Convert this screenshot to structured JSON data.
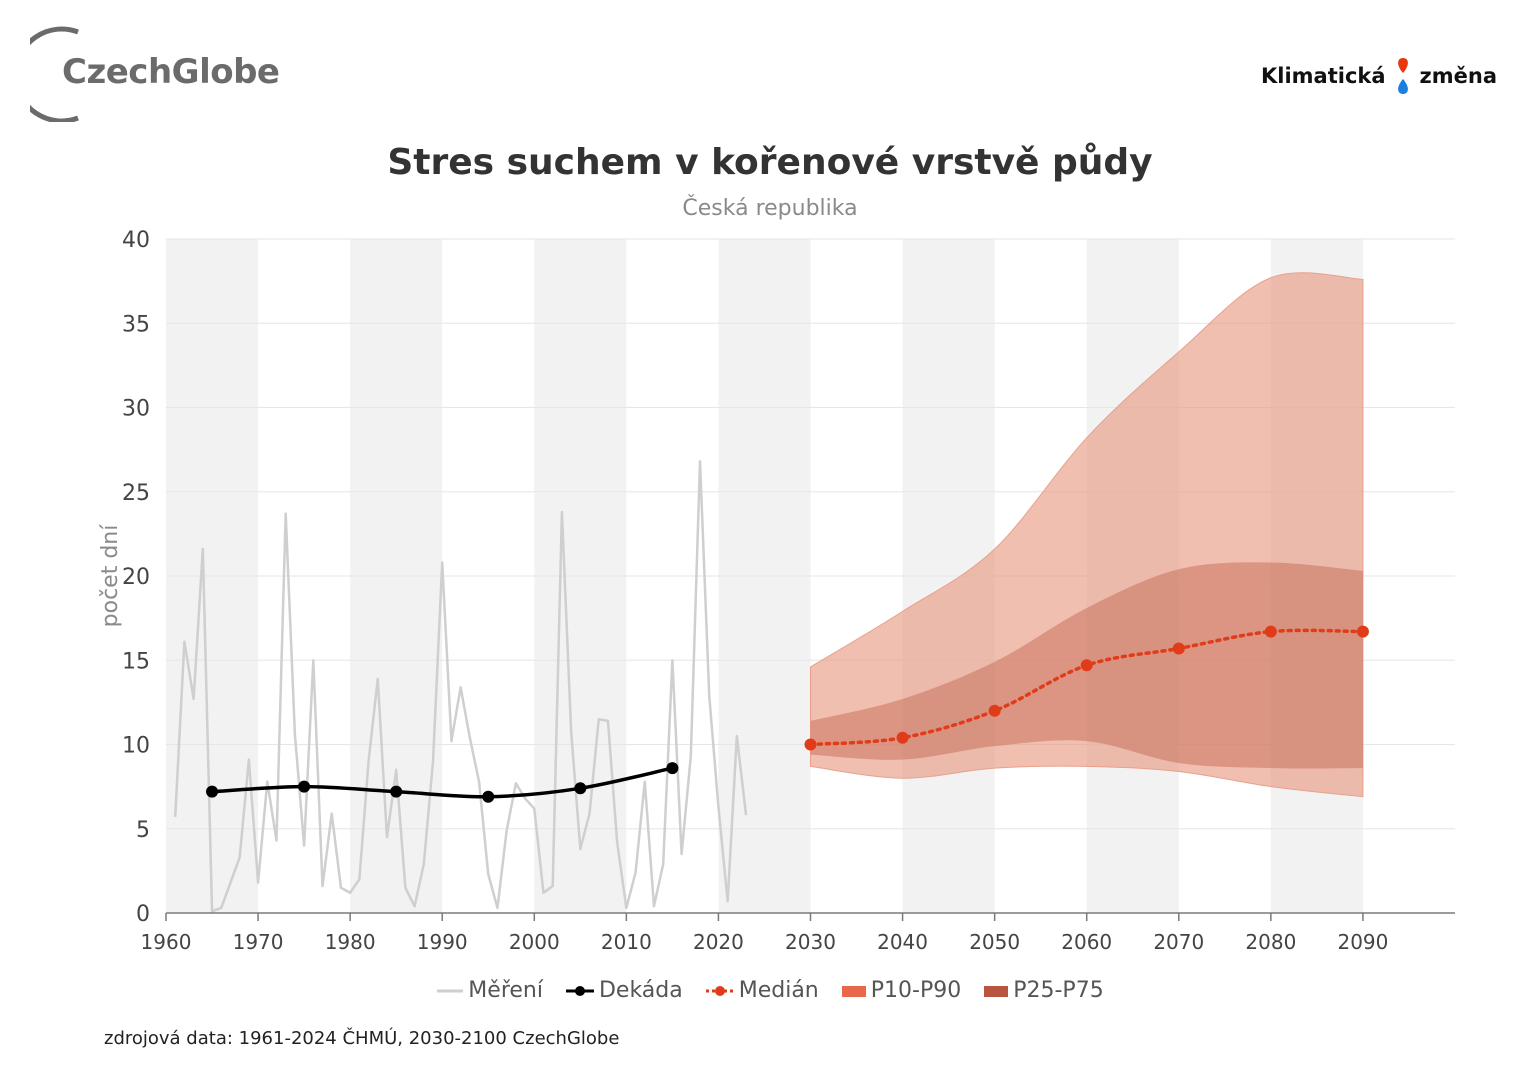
{
  "logos": {
    "left": "CzechGlobe",
    "right_part1": "Klimatická",
    "right_part2": "změna"
  },
  "source": "zdrojová data: 1961-2024 ČHMÚ, 2030-2100 CzechGlobe",
  "colors": {
    "measurement": "#cfcfcf",
    "decade": "#000000",
    "median": "#e03c1a",
    "p10_p90": "#e9977f",
    "p25_p75": "#c8735c",
    "band_shade": "#f2f2f2",
    "grid": "#e6e6e6"
  },
  "chart_data": {
    "type": "line",
    "title": "Stres suchem v kořenové vrstvě půdy",
    "subtitle": "Česká republika",
    "ylabel": "počet dní",
    "xlabel": "",
    "xlim": [
      1960,
      2100
    ],
    "ylim": [
      0,
      40
    ],
    "x_ticks": [
      1960,
      1970,
      1980,
      1990,
      2000,
      2010,
      2020,
      2030,
      2040,
      2050,
      2060,
      2070,
      2080,
      2090
    ],
    "y_ticks": [
      0,
      5,
      10,
      15,
      20,
      25,
      30,
      35,
      40
    ],
    "grid": true,
    "legend_position": "bottom",
    "legend": [
      "Měření",
      "Dekáda",
      "Medián",
      "P10-P90",
      "P25-P75"
    ],
    "series": [
      {
        "name": "Měření",
        "type": "line",
        "x": [
          1961,
          1962,
          1963,
          1964,
          1965,
          1966,
          1967,
          1968,
          1969,
          1970,
          1971,
          1972,
          1973,
          1974,
          1975,
          1976,
          1977,
          1978,
          1979,
          1980,
          1981,
          1982,
          1983,
          1984,
          1985,
          1986,
          1987,
          1988,
          1989,
          1990,
          1991,
          1992,
          1993,
          1994,
          1995,
          1996,
          1997,
          1998,
          1999,
          2000,
          2001,
          2002,
          2003,
          2004,
          2005,
          2006,
          2007,
          2008,
          2009,
          2010,
          2011,
          2012,
          2013,
          2014,
          2015,
          2016,
          2017,
          2018,
          2019,
          2020,
          2021,
          2022,
          2023
        ],
        "y": [
          5.7,
          16.1,
          12.7,
          21.6,
          0.1,
          0.3,
          1.8,
          3.3,
          9.1,
          1.8,
          7.8,
          4.3,
          23.7,
          10.6,
          4.0,
          15.0,
          1.6,
          5.9,
          1.5,
          1.2,
          2.0,
          9.0,
          13.9,
          4.5,
          8.5,
          1.5,
          0.4,
          2.9,
          9.0,
          20.8,
          10.2,
          13.4,
          10.4,
          7.8,
          2.3,
          0.3,
          4.9,
          7.7,
          6.8,
          6.2,
          1.2,
          1.6,
          23.8,
          10.8,
          3.8,
          5.9,
          11.5,
          11.4,
          4.2,
          0.3,
          2.4,
          7.8,
          0.4,
          2.9,
          15.0,
          3.5,
          9.3,
          26.8,
          12.9,
          6.3,
          0.7,
          10.5,
          5.8
        ]
      },
      {
        "name": "Dekáda",
        "type": "line",
        "x": [
          1965,
          1975,
          1985,
          1995,
          2005,
          2015
        ],
        "y": [
          7.2,
          7.5,
          7.2,
          6.9,
          7.4,
          8.6
        ]
      },
      {
        "name": "Medián",
        "type": "line",
        "x": [
          2030,
          2040,
          2050,
          2060,
          2070,
          2080,
          2090
        ],
        "y": [
          10.0,
          10.4,
          12.0,
          14.7,
          15.7,
          16.7,
          16.7
        ]
      },
      {
        "name": "P10-P90",
        "type": "area",
        "x": [
          2030,
          2040,
          2050,
          2060,
          2070,
          2080,
          2090
        ],
        "low": [
          8.7,
          8.0,
          8.6,
          8.7,
          8.4,
          7.5,
          6.9
        ],
        "high": [
          14.6,
          17.9,
          21.6,
          28.2,
          33.3,
          37.7,
          37.6
        ]
      },
      {
        "name": "P25-P75",
        "type": "area",
        "x": [
          2030,
          2040,
          2050,
          2060,
          2070,
          2080,
          2090
        ],
        "low": [
          9.4,
          9.1,
          9.9,
          10.2,
          8.9,
          8.6,
          8.6
        ],
        "high": [
          11.4,
          12.7,
          14.9,
          18.1,
          20.4,
          20.8,
          20.3
        ]
      }
    ]
  }
}
